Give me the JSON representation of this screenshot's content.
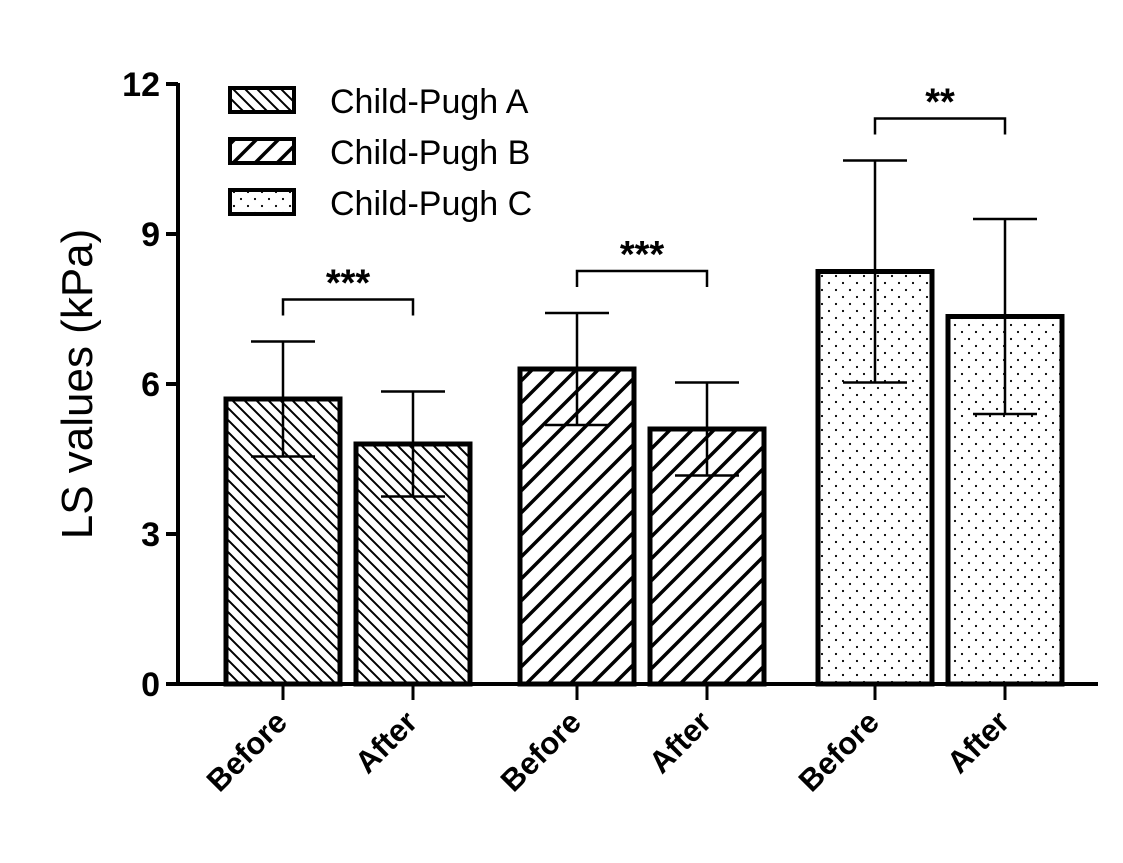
{
  "chart_data": {
    "type": "bar",
    "title": "",
    "xlabel": "",
    "ylabel": "LS values (kPa)",
    "ylim": [
      0,
      12
    ],
    "yticks": [
      "0",
      "3",
      "6",
      "9",
      "12"
    ],
    "legend_position": "top-left",
    "colors": {
      "bar_stroke": "#000000",
      "background": "#ffffff"
    },
    "groups": [
      {
        "name": "Child-Pugh A",
        "pattern": "back-diagonal",
        "bars": [
          {
            "label": "Before",
            "value": 5.7,
            "error": 1.15
          },
          {
            "label": "After",
            "value": 4.8,
            "error": 1.05
          }
        ],
        "significance": "***"
      },
      {
        "name": "Child-Pugh B",
        "pattern": "forward-diagonal",
        "bars": [
          {
            "label": "Before",
            "value": 6.3,
            "error": 1.12
          },
          {
            "label": "After",
            "value": 5.1,
            "error": 0.93
          }
        ],
        "significance": "***"
      },
      {
        "name": "Child-Pugh C",
        "pattern": "dots",
        "bars": [
          {
            "label": "Before",
            "value": 8.25,
            "error": 2.22
          },
          {
            "label": "After",
            "value": 7.35,
            "error": 1.95
          }
        ],
        "significance": "**"
      }
    ]
  }
}
